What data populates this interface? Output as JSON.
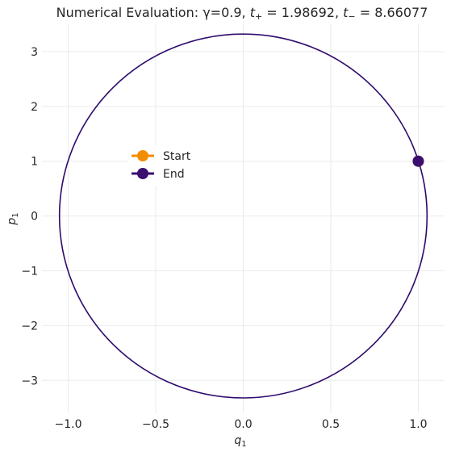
{
  "chart_data": {
    "type": "line",
    "title": "Numerical Evaluation: γ=0.9, t₊ = 1.98692, t₋ = 8.66077",
    "title_parts": {
      "prefix": "Numerical Evaluation: γ=0.9, ",
      "t_plus_var": "t",
      "t_plus_sub": "+",
      "t_plus_value": " = 1.98692, ",
      "t_minus_var": "t",
      "t_minus_sub": "−",
      "t_minus_value": " = 8.66077"
    },
    "xlabel": {
      "var": "q",
      "sub": "1"
    },
    "ylabel": {
      "var": "p",
      "sub": "1"
    },
    "xlim": [
      -1.15,
      1.15
    ],
    "ylim": [
      -3.6,
      3.5
    ],
    "xticks": [
      -1.0,
      -0.5,
      0.0,
      0.5,
      1.0
    ],
    "xtick_labels": [
      "−1.0",
      "−0.5",
      "0.0",
      "0.5",
      "1.0"
    ],
    "yticks": [
      -3,
      -2,
      -1,
      0,
      1,
      2,
      3
    ],
    "ytick_labels": [
      "−3",
      "−2",
      "−1",
      "0",
      "1",
      "2",
      "3"
    ],
    "grid": true,
    "legend_position": "center-left",
    "trajectory": {
      "shape": "ellipse",
      "center": [
        0,
        0
      ],
      "q_semi_axis": 1.05,
      "p_semi_axis": 3.32,
      "color": "#2d0a6b"
    },
    "series": [
      {
        "name": "Start",
        "x": [
          1.0
        ],
        "y": [
          1.0
        ],
        "color": "#f28c00"
      },
      {
        "name": "End",
        "x": [
          1.0
        ],
        "y": [
          1.0
        ],
        "color": "#3b0f70"
      }
    ]
  }
}
